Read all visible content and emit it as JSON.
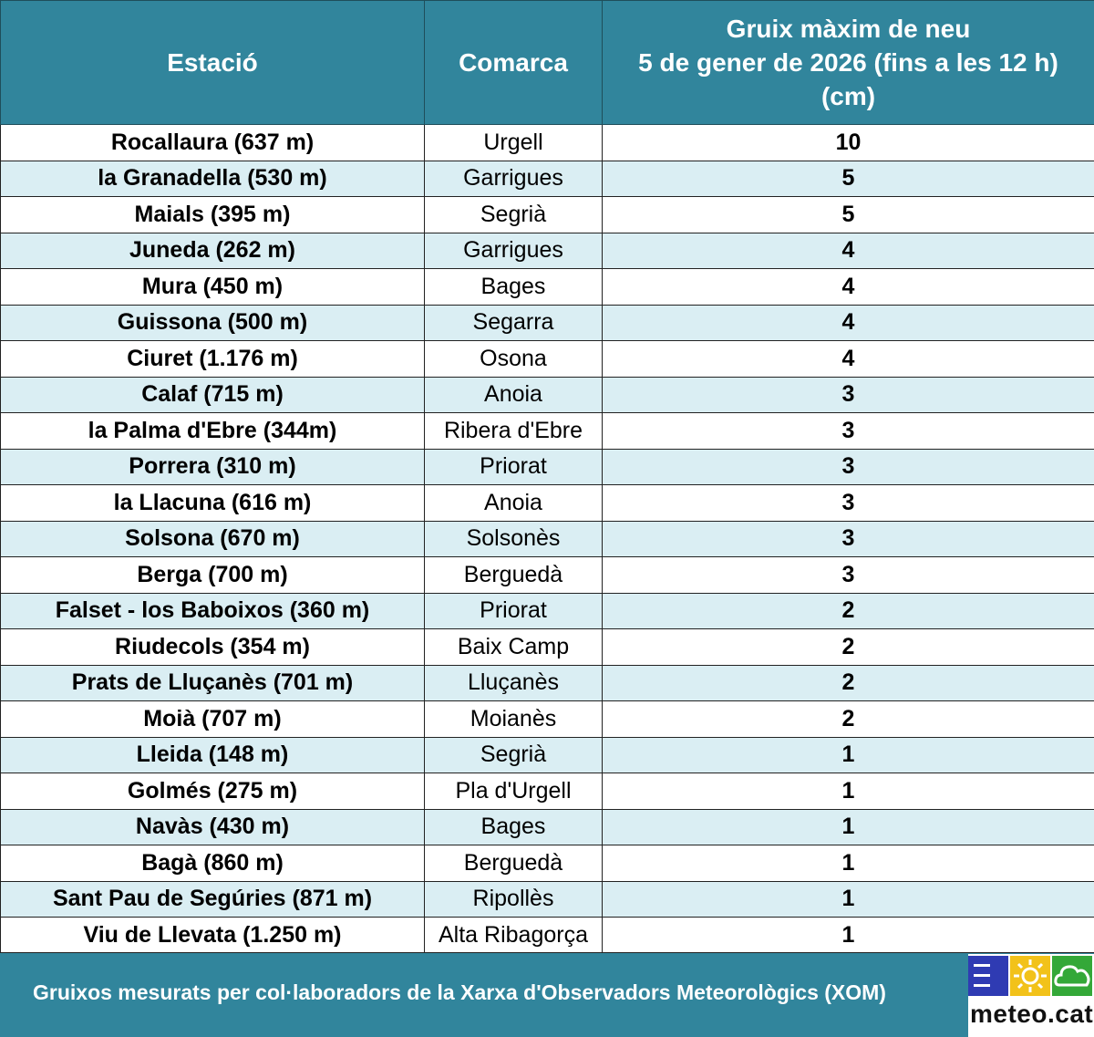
{
  "table": {
    "headers": {
      "station": "Estació",
      "county": "Comarca",
      "snow_line1": "Gruix màxim de neu",
      "snow_line2": "5 de gener de 2026 (fins a les 12 h)",
      "snow_line3": "(cm)"
    },
    "rows": [
      {
        "station": "Rocallaura (637 m)",
        "county": "Urgell",
        "snow": "10"
      },
      {
        "station": "la Granadella (530 m)",
        "county": "Garrigues",
        "snow": "5"
      },
      {
        "station": "Maials (395 m)",
        "county": "Segrià",
        "snow": "5"
      },
      {
        "station": "Juneda (262 m)",
        "county": "Garrigues",
        "snow": "4"
      },
      {
        "station": "Mura (450 m)",
        "county": "Bages",
        "snow": "4"
      },
      {
        "station": "Guissona (500 m)",
        "county": "Segarra",
        "snow": "4"
      },
      {
        "station": "Ciuret (1.176 m)",
        "county": "Osona",
        "snow": "4"
      },
      {
        "station": "Calaf (715 m)",
        "county": "Anoia",
        "snow": "3"
      },
      {
        "station": "la Palma d'Ebre (344m)",
        "county": "Ribera d'Ebre",
        "snow": "3"
      },
      {
        "station": "Porrera (310 m)",
        "county": "Priorat",
        "snow": "3"
      },
      {
        "station": "la Llacuna (616 m)",
        "county": "Anoia",
        "snow": "3"
      },
      {
        "station": "Solsona (670 m)",
        "county": "Solsonès",
        "snow": "3"
      },
      {
        "station": "Berga (700 m)",
        "county": "Berguedà",
        "snow": "3"
      },
      {
        "station": "Falset - los Baboixos (360 m)",
        "county": "Priorat",
        "snow": "2"
      },
      {
        "station": "Riudecols (354 m)",
        "county": "Baix Camp",
        "snow": "2"
      },
      {
        "station": "Prats de Lluçanès (701 m)",
        "county": "Lluçanès",
        "snow": "2"
      },
      {
        "station": "Moià (707 m)",
        "county": "Moianès",
        "snow": "2"
      },
      {
        "station": "Lleida (148 m)",
        "county": "Segrià",
        "snow": "1"
      },
      {
        "station": "Golmés (275 m)",
        "county": "Pla d'Urgell",
        "snow": "1"
      },
      {
        "station": "Navàs (430 m)",
        "county": "Bages",
        "snow": "1"
      },
      {
        "station": "Bagà (860 m)",
        "county": "Berguedà",
        "snow": "1"
      },
      {
        "station": "Sant Pau de Segúries (871 m)",
        "county": "Ripollès",
        "snow": "1"
      },
      {
        "station": "Viu de Llevata (1.250 m)",
        "county": "Alta Ribagorça",
        "snow": "1"
      }
    ]
  },
  "footer": {
    "note": "Gruixos mesurats per col·laboradors de la Xarxa d'Observadors Meteorològics (XOM)",
    "logo_text": "meteo.cat"
  },
  "colors": {
    "header_bg": "#31859c",
    "stripe_bg": "#daeef3",
    "logo_blue": "#2f3bb3",
    "logo_yellow": "#f2c21a",
    "logo_green": "#34a838"
  },
  "icons": [
    "menu-icon",
    "sun-icon",
    "cloud-icon"
  ]
}
